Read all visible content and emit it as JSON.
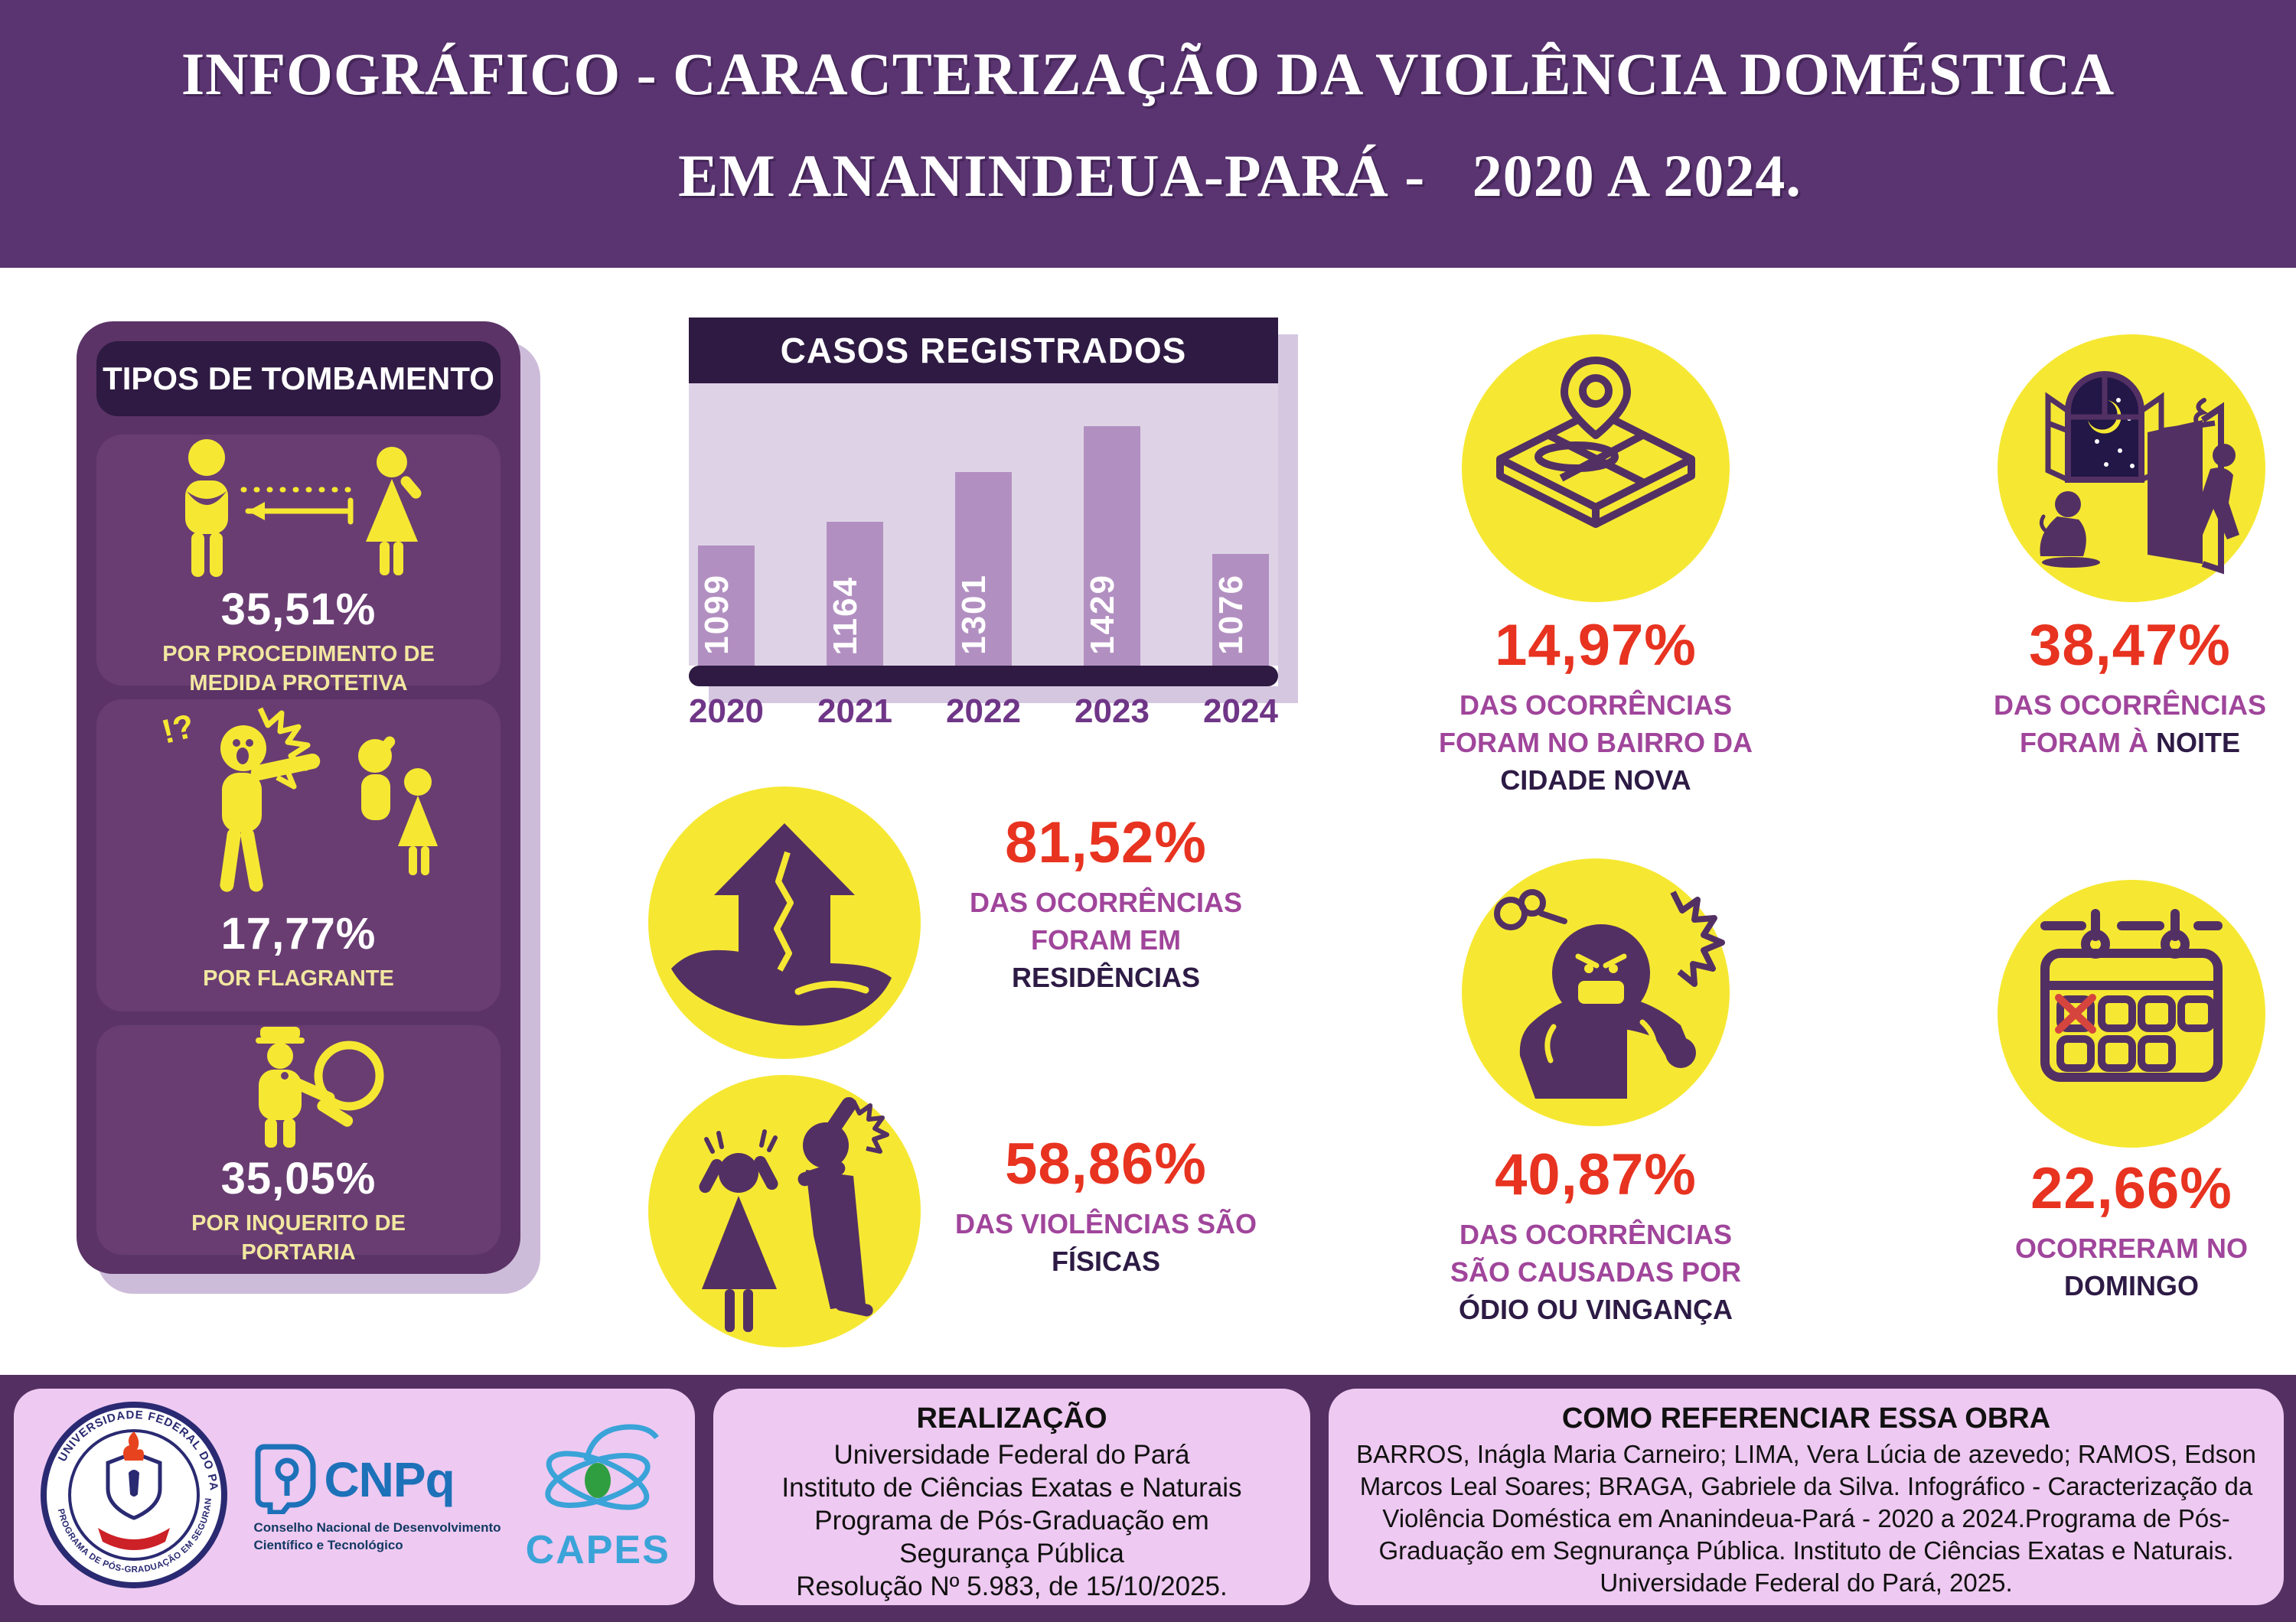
{
  "title": {
    "line1": "INFOGRÁFICO - CARACTERIZAÇÃO DA VIOLÊNCIA DOMÉSTICA",
    "line2": "EM ANANINDEUA-PARÁ -   2020 A 2024."
  },
  "sidebar": {
    "header": "TIPOS DE TOMBAMENTO",
    "items": [
      {
        "icon": "protective-measure-distance-icon",
        "value": "35,51%",
        "label": "POR PROCEDIMENTO DE\nMEDIDA PROTETIVA"
      },
      {
        "icon": "flagrante-pointing-icon",
        "value": "17,77%",
        "label": "POR FLAGRANTE"
      },
      {
        "icon": "police-inquiry-magnifier-icon",
        "value": "35,05%",
        "label": "POR INQUERITO DE\nPORTARIA"
      }
    ]
  },
  "chart_data": {
    "type": "bar",
    "title": "CASOS REGISTRADOS",
    "categories": [
      "2020",
      "2021",
      "2022",
      "2023",
      "2024"
    ],
    "values": [
      1099,
      1164,
      1301,
      1429,
      1076
    ],
    "xlabel": "",
    "ylabel": "",
    "legend": "none",
    "grid": false,
    "value_labels": "rotated-vertical-inside-bar",
    "bar_color": "#b28fc1",
    "plot_bg": "#ded3e6",
    "header_bg": "#2e1a42"
  },
  "stats": {
    "residences": {
      "icon": "house-in-hand-icon",
      "value": "81,52%",
      "lines": [
        [
          {
            "t": "DAS OCORRÊNCIAS",
            "s": "purple"
          }
        ],
        [
          {
            "t": "FORAM EM",
            "s": "purple"
          }
        ],
        [
          {
            "t": "RESIDÊNCIAS",
            "s": "dark"
          }
        ]
      ]
    },
    "physical": {
      "icon": "physical-violence-icon",
      "value": "58,86%",
      "lines": [
        [
          {
            "t": "DAS VIOLÊNCIAS SÃO",
            "s": "purple"
          }
        ],
        [
          {
            "t": "FÍSICAS",
            "s": "dark"
          }
        ]
      ]
    },
    "neighborhood": {
      "icon": "map-pin-icon",
      "value": "14,97%",
      "lines": [
        [
          {
            "t": "DAS OCORRÊNCIAS",
            "s": "purple"
          }
        ],
        [
          {
            "t": "FORAM NO BAIRRO DA",
            "s": "purple"
          }
        ],
        [
          {
            "t": "CIDADE NOVA",
            "s": "dark"
          }
        ]
      ]
    },
    "night": {
      "icon": "night-window-door-icon",
      "value": "38,47%",
      "lines": [
        [
          {
            "t": "DAS OCORRÊNCIAS",
            "s": "purple"
          }
        ],
        [
          {
            "t": "FORAM À ",
            "s": "purple"
          },
          {
            "t": "NOITE",
            "s": "dark"
          }
        ]
      ]
    },
    "hate": {
      "icon": "angry-person-icon",
      "value": "40,87%",
      "lines": [
        [
          {
            "t": "DAS OCORRÊNCIAS",
            "s": "purple"
          }
        ],
        [
          {
            "t": "SÃO CAUSADAS POR",
            "s": "purple"
          }
        ],
        [
          {
            "t": "ÓDIO OU VINGANÇA",
            "s": "dark"
          }
        ]
      ]
    },
    "sunday": {
      "icon": "calendar-x-icon",
      "value": "22,66%",
      "lines": [
        [
          {
            "t": "OCORRERAM NO",
            "s": "purple"
          }
        ],
        [
          {
            "t": "DOMINGO",
            "s": "dark"
          }
        ]
      ]
    }
  },
  "footer": {
    "logos": {
      "ufpa_ring_top": "UNIVERSIDADE FEDERAL DO PARÁ",
      "ufpa_ring_bottom": "PROGRAMA DE PÓS-GRADUAÇÃO EM SEGURANÇA PÚBLICA",
      "cnpq_word": "CNPq",
      "cnpq_sub1": "Conselho Nacional de Desenvolvimento",
      "cnpq_sub2": "Científico e Tecnológico",
      "capes_word": "CAPES"
    },
    "realizacao": {
      "heading": "REALIZAÇÃO",
      "lines": [
        "Universidade Federal do Pará",
        "Instituto de Ciências Exatas e Naturais",
        "Programa de Pós-Graduação em",
        "Segurança Pública",
        "Resolução Nº 5.983, de 15/10/2025."
      ]
    },
    "reference": {
      "heading": "COMO REFERENCIAR ESSA OBRA",
      "body": "BARROS, Inágla Maria Carneiro; LIMA, Vera Lúcia de azevedo; RAMOS, Edson Marcos Leal Soares;  BRAGA, Gabriele da Silva. Infográfico - Caracterização da Violência Doméstica em Ananindeua-Pará - 2020 a 2024.Programa de Pós-Graduação em Segnurança Pública. Instituto de Ciências Exatas e Naturais. Universidade Federal do Pará, 2025."
    }
  },
  "colors": {
    "header_bg": "#5a3471",
    "footer_bg": "#533061",
    "sidebar_bg": "#5b3367",
    "card_bg": "#693d72",
    "dark_box": "#2e1a42",
    "accent_red": "#e73320",
    "label_purple": "#a0459b",
    "label_dark": "#2d1b45",
    "icon_yellow": "#f6e832",
    "icon_purple": "#533063",
    "pale_yellow": "#f2e7a0",
    "panel_pink": "#eec9f1",
    "bar_purple": "#b28fc1"
  }
}
